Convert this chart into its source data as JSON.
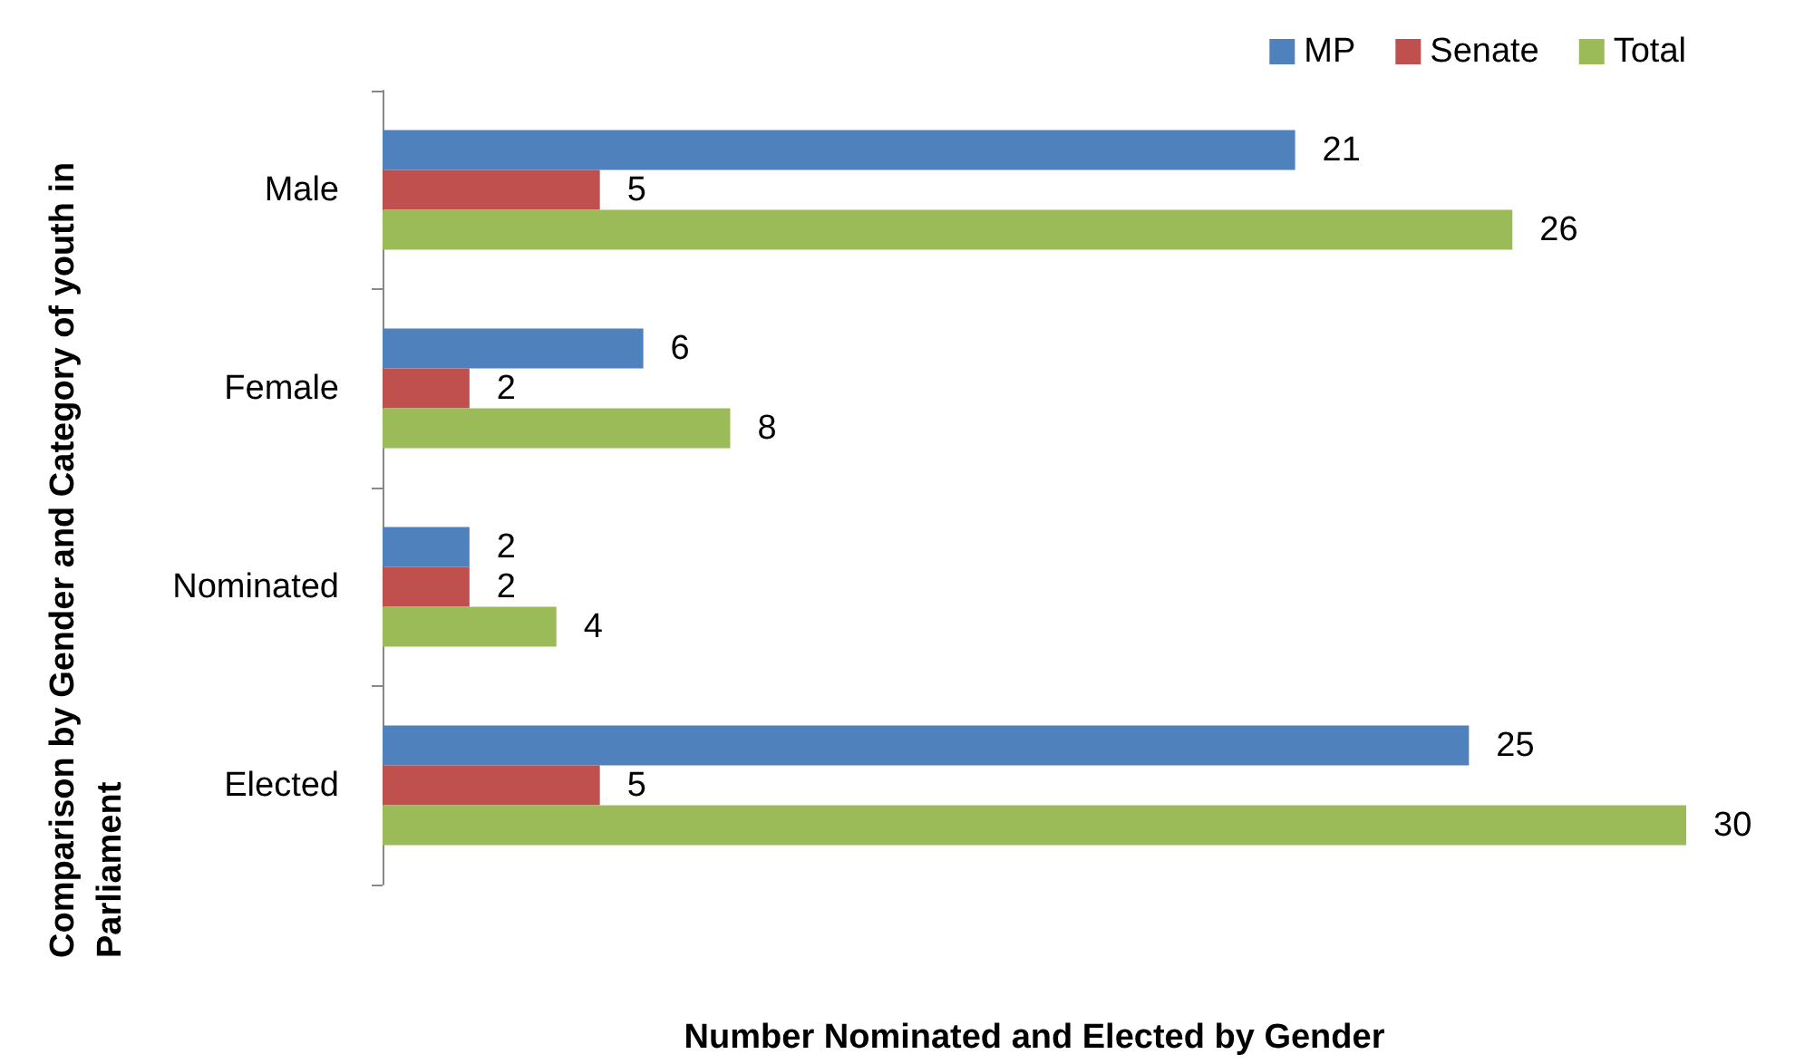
{
  "chart_data": {
    "type": "bar",
    "orientation": "horizontal",
    "xlabel": "Number Nominated and Elected by Gender",
    "ylabel": "Comparison by Gender and Category of youth in Parliament",
    "categories": [
      "Male",
      "Female",
      "Nominated",
      "Elected"
    ],
    "series": [
      {
        "name": "MP",
        "color": "#4f81bd",
        "values": [
          21,
          6,
          2,
          25
        ]
      },
      {
        "name": "Senate",
        "color": "#c0504d",
        "values": [
          5,
          2,
          2,
          5
        ]
      },
      {
        "name": "Total",
        "color": "#9bbb59",
        "values": [
          26,
          8,
          4,
          30
        ]
      }
    ],
    "data_labels": true,
    "legend": "top right",
    "grid": false,
    "tick_labels": "y"
  }
}
